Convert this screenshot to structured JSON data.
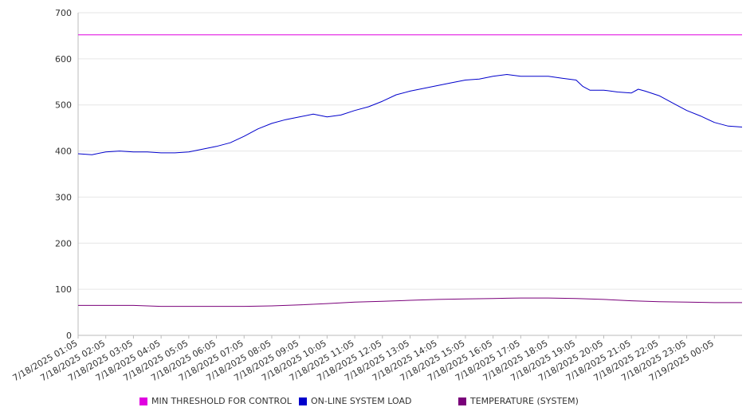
{
  "chart_data": {
    "type": "line",
    "title": "",
    "xlabel": "",
    "ylabel": "",
    "ylim": [
      0,
      700
    ],
    "yticks": [
      0,
      100,
      200,
      300,
      400,
      500,
      600,
      700
    ],
    "grid": true,
    "legend_position": "bottom",
    "x_ticks": [
      "7/18/2025 01:05",
      "7/18/2025 02:05",
      "7/18/2025 03:05",
      "7/18/2025 04:05",
      "7/18/2025 05:05",
      "7/18/2025 06:05",
      "7/18/2025 07:05",
      "7/18/2025 08:05",
      "7/18/2025 09:05",
      "7/18/2025 10:05",
      "7/18/2025 11:05",
      "7/18/2025 12:05",
      "7/18/2025 13:05",
      "7/18/2025 14:05",
      "7/18/2025 15:05",
      "7/18/2025 16:05",
      "7/18/2025 17:05",
      "7/18/2025 18:05",
      "7/18/2025 19:05",
      "7/18/2025 20:05",
      "7/18/2025 21:05",
      "7/18/2025 22:05",
      "7/18/2025 23:05",
      "7/19/2025 00:05"
    ],
    "x_end": "7/19/2025 01:05",
    "series": [
      {
        "name": "MIN THRESHOLD FOR CONTROL",
        "color": "#e000e0",
        "x": [
          "7/18/2025 01:05",
          "7/19/2025 01:05"
        ],
        "y": [
          652,
          652
        ]
      },
      {
        "name": "ON-LINE SYSTEM LOAD",
        "color": "#0000cc",
        "x": [
          "7/18/2025 01:05",
          "7/18/2025 01:35",
          "7/18/2025 02:05",
          "7/18/2025 02:35",
          "7/18/2025 03:05",
          "7/18/2025 03:35",
          "7/18/2025 04:05",
          "7/18/2025 04:35",
          "7/18/2025 05:05",
          "7/18/2025 05:35",
          "7/18/2025 06:05",
          "7/18/2025 06:35",
          "7/18/2025 07:05",
          "7/18/2025 07:35",
          "7/18/2025 08:05",
          "7/18/2025 08:35",
          "7/18/2025 09:05",
          "7/18/2025 09:35",
          "7/18/2025 10:05",
          "7/18/2025 10:35",
          "7/18/2025 11:05",
          "7/18/2025 11:35",
          "7/18/2025 12:05",
          "7/18/2025 12:35",
          "7/18/2025 13:05",
          "7/18/2025 13:35",
          "7/18/2025 14:05",
          "7/18/2025 14:35",
          "7/18/2025 15:05",
          "7/18/2025 15:35",
          "7/18/2025 16:05",
          "7/18/2025 16:35",
          "7/18/2025 17:05",
          "7/18/2025 17:35",
          "7/18/2025 18:05",
          "7/18/2025 18:35",
          "7/18/2025 19:05",
          "7/18/2025 19:20",
          "7/18/2025 19:35",
          "7/18/2025 20:05",
          "7/18/2025 20:35",
          "7/18/2025 21:05",
          "7/18/2025 21:20",
          "7/18/2025 21:35",
          "7/18/2025 22:05",
          "7/18/2025 22:35",
          "7/18/2025 23:05",
          "7/18/2025 23:35",
          "7/19/2025 00:05",
          "7/19/2025 00:35",
          "7/19/2025 01:05"
        ],
        "y": [
          394,
          392,
          398,
          400,
          398,
          398,
          396,
          396,
          398,
          404,
          410,
          418,
          432,
          448,
          460,
          468,
          474,
          480,
          474,
          478,
          488,
          496,
          508,
          522,
          530,
          536,
          542,
          548,
          554,
          556,
          562,
          566,
          562,
          562,
          562,
          558,
          554,
          540,
          532,
          532,
          528,
          526,
          534,
          530,
          520,
          504,
          488,
          476,
          462,
          454,
          452
        ]
      },
      {
        "name": "TEMPERATURE (SYSTEM)",
        "color": "#7a007a",
        "x": [
          "7/18/2025 01:05",
          "7/18/2025 03:05",
          "7/18/2025 04:05",
          "7/18/2025 06:05",
          "7/18/2025 07:05",
          "7/18/2025 08:05",
          "7/18/2025 09:05",
          "7/18/2025 10:05",
          "7/18/2025 11:05",
          "7/18/2025 12:05",
          "7/18/2025 13:05",
          "7/18/2025 14:05",
          "7/18/2025 15:05",
          "7/18/2025 16:05",
          "7/18/2025 17:05",
          "7/18/2025 18:05",
          "7/18/2025 19:05",
          "7/18/2025 20:05",
          "7/18/2025 21:05",
          "7/18/2025 22:05",
          "7/18/2025 23:05",
          "7/19/2025 00:05",
          "7/19/2025 01:05"
        ],
        "y": [
          65,
          65,
          63,
          63,
          63,
          64,
          66,
          69,
          72,
          74,
          76,
          78,
          79,
          80,
          81,
          81,
          80,
          78,
          75,
          73,
          72,
          71,
          71
        ]
      }
    ]
  }
}
